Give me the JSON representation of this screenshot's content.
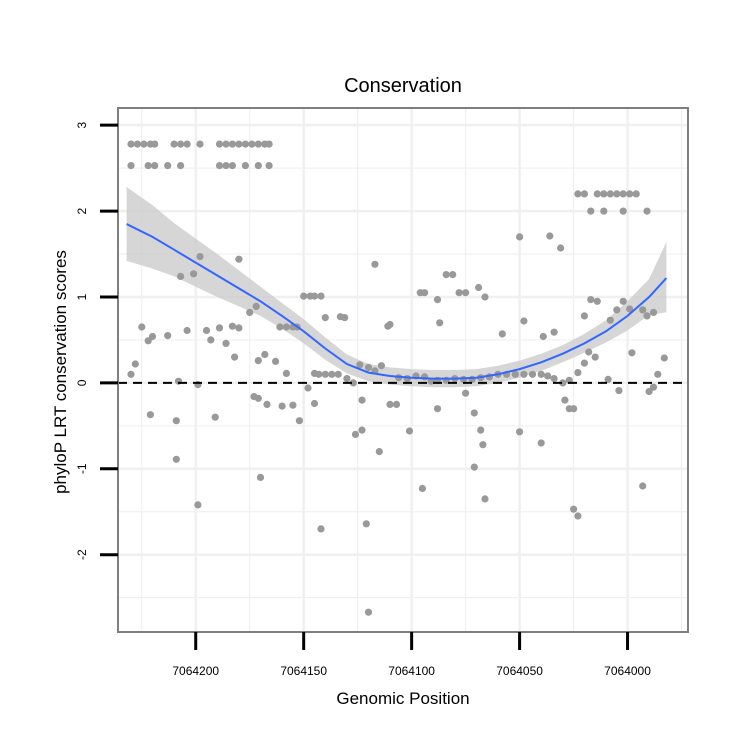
{
  "chart_data": {
    "type": "scatter",
    "title": "Conservation",
    "xlabel": "Genomic Position",
    "ylabel": "phyloP LRT conservation scores",
    "xlim": [
      7064236,
      7063972
    ],
    "ylim": [
      -2.9,
      3.2
    ],
    "x_reversed": true,
    "x_ticks": [
      7064200,
      7064150,
      7064100,
      7064050,
      7064000
    ],
    "x_tick_labels": [
      "7064200",
      "7064150",
      "7064100",
      "7064050",
      "7064000"
    ],
    "y_ticks": [
      -2,
      -1,
      0,
      1,
      2,
      3
    ],
    "y_tick_labels": [
      "-2",
      "-1",
      "0",
      "1",
      "2",
      "3"
    ],
    "reference_line": {
      "y": 0,
      "style": "dashed"
    },
    "grid": true,
    "colors": {
      "points": "#999999",
      "smooth": "#3366ff",
      "ribbon": "#cccccc",
      "panel_border": "#7f7f7f",
      "grid": "#f0f0f0"
    },
    "points": [
      [
        7064230,
        2.78
      ],
      [
        7064227,
        2.78
      ],
      [
        7064224,
        2.78
      ],
      [
        7064221,
        2.78
      ],
      [
        7064219,
        2.78
      ],
      [
        7064210,
        2.78
      ],
      [
        7064207,
        2.78
      ],
      [
        7064204,
        2.78
      ],
      [
        7064198,
        2.78
      ],
      [
        7064189,
        2.78
      ],
      [
        7064186,
        2.78
      ],
      [
        7064183,
        2.78
      ],
      [
        7064180,
        2.78
      ],
      [
        7064177,
        2.78
      ],
      [
        7064174,
        2.78
      ],
      [
        7064171,
        2.78
      ],
      [
        7064168,
        2.78
      ],
      [
        7064166,
        2.78
      ],
      [
        7064230,
        2.53
      ],
      [
        7064222,
        2.53
      ],
      [
        7064219,
        2.53
      ],
      [
        7064213,
        2.53
      ],
      [
        7064207,
        2.53
      ],
      [
        7064189,
        2.53
      ],
      [
        7064186,
        2.53
      ],
      [
        7064183,
        2.53
      ],
      [
        7064177,
        2.53
      ],
      [
        7064171,
        2.53
      ],
      [
        7064166,
        2.53
      ],
      [
        7064023,
        2.2
      ],
      [
        7064020,
        2.2
      ],
      [
        7064014,
        2.2
      ],
      [
        7064011,
        2.2
      ],
      [
        7064008,
        2.2
      ],
      [
        7064005,
        2.2
      ],
      [
        7064002,
        2.2
      ],
      [
        7063999,
        2.2
      ],
      [
        7063996,
        2.2
      ],
      [
        7064017,
        2.0
      ],
      [
        7064011,
        2.0
      ],
      [
        7064002,
        2.0
      ],
      [
        7063991,
        2.0
      ],
      [
        7064198,
        1.47
      ],
      [
        7064180,
        1.44
      ],
      [
        7064201,
        1.27
      ],
      [
        7064207,
        1.24
      ],
      [
        7064081,
        1.26
      ],
      [
        7064084,
        1.26
      ],
      [
        7064117,
        1.38
      ],
      [
        7064050,
        1.7
      ],
      [
        7064036,
        1.71
      ],
      [
        7064031,
        1.57
      ],
      [
        7064150,
        1.01
      ],
      [
        7064147,
        1.01
      ],
      [
        7064145,
        1.01
      ],
      [
        7064142,
        1.01
      ],
      [
        7064096,
        1.05
      ],
      [
        7064094,
        1.05
      ],
      [
        7064078,
        1.05
      ],
      [
        7064075,
        1.05
      ],
      [
        7064066,
        1.0
      ],
      [
        7064088,
        0.97
      ],
      [
        7064069,
        1.11
      ],
      [
        7064017,
        0.97
      ],
      [
        7064014,
        0.95
      ],
      [
        7064005,
        0.85
      ],
      [
        7064002,
        0.95
      ],
      [
        7063999,
        0.86
      ],
      [
        7063993,
        0.85
      ],
      [
        7063988,
        0.82
      ],
      [
        7063991,
        0.78
      ],
      [
        7064008,
        0.73
      ],
      [
        7064020,
        0.78
      ],
      [
        7064225,
        0.65
      ],
      [
        7064204,
        0.61
      ],
      [
        7064195,
        0.61
      ],
      [
        7064189,
        0.64
      ],
      [
        7064183,
        0.66
      ],
      [
        7064180,
        0.64
      ],
      [
        7064172,
        0.89
      ],
      [
        7064175,
        0.82
      ],
      [
        7064140,
        0.76
      ],
      [
        7064131,
        0.76
      ],
      [
        7064133,
        0.77
      ],
      [
        7064155,
        0.65
      ],
      [
        7064153,
        0.65
      ],
      [
        7064161,
        0.65
      ],
      [
        7064158,
        0.65
      ],
      [
        7064111,
        0.66
      ],
      [
        7064110,
        0.68
      ],
      [
        7064087,
        0.7
      ],
      [
        7064058,
        0.57
      ],
      [
        7064039,
        0.54
      ],
      [
        7064034,
        0.59
      ],
      [
        7064048,
        0.72
      ],
      [
        7064228,
        0.22
      ],
      [
        7064230,
        0.1
      ],
      [
        7064222,
        0.49
      ],
      [
        7064220,
        0.54
      ],
      [
        7064208,
        0.02
      ],
      [
        7064213,
        0.55
      ],
      [
        7064193,
        0.5
      ],
      [
        7064186,
        0.46
      ],
      [
        7064182,
        0.3
      ],
      [
        7064171,
        0.26
      ],
      [
        7064168,
        0.33
      ],
      [
        7064163,
        0.25
      ],
      [
        7064158,
        0.11
      ],
      [
        7064148,
        -0.06
      ],
      [
        7064145,
        0.11
      ],
      [
        7064143,
        0.1
      ],
      [
        7064140,
        0.1
      ],
      [
        7064137,
        0.1
      ],
      [
        7064134,
        0.1
      ],
      [
        7064130,
        0.05
      ],
      [
        7064127,
        0.0
      ],
      [
        7064124,
        0.21
      ],
      [
        7064120,
        0.18
      ],
      [
        7064117,
        0.14
      ],
      [
        7064114,
        0.2
      ],
      [
        7064106,
        0.06
      ],
      [
        7064102,
        0.05
      ],
      [
        7064098,
        0.08
      ],
      [
        7064094,
        0.07
      ],
      [
        7064091,
        0.02
      ],
      [
        7064088,
        0.03
      ],
      [
        7064084,
        0.03
      ],
      [
        7064080,
        0.05
      ],
      [
        7064076,
        0.04
      ],
      [
        7064072,
        0.04
      ],
      [
        7064068,
        0.06
      ],
      [
        7064064,
        0.07
      ],
      [
        7064060,
        0.1
      ],
      [
        7064056,
        0.1
      ],
      [
        7064052,
        0.1
      ],
      [
        7064048,
        0.1
      ],
      [
        7064044,
        0.1
      ],
      [
        7064040,
        0.1
      ],
      [
        7064037,
        0.08
      ],
      [
        7064034,
        0.05
      ],
      [
        7064030,
        0.0
      ],
      [
        7064027,
        0.03
      ],
      [
        7064023,
        0.12
      ],
      [
        7064020,
        0.23
      ],
      [
        7064018,
        0.36
      ],
      [
        7064015,
        0.3
      ],
      [
        7064009,
        0.04
      ],
      [
        7063998,
        0.35
      ],
      [
        7063988,
        -0.05
      ],
      [
        7063986,
        0.1
      ],
      [
        7063983,
        0.29
      ],
      [
        7064221,
        -0.37
      ],
      [
        7064209,
        -0.44
      ],
      [
        7064199,
        -0.02
      ],
      [
        7064191,
        -0.4
      ],
      [
        7064173,
        -0.16
      ],
      [
        7064171,
        -0.18
      ],
      [
        7064167,
        -0.25
      ],
      [
        7064160,
        -0.27
      ],
      [
        7064155,
        -0.26
      ],
      [
        7064152,
        -0.44
      ],
      [
        7064145,
        -0.24
      ],
      [
        7064123,
        -0.2
      ],
      [
        7064110,
        -0.25
      ],
      [
        7064107,
        -0.25
      ],
      [
        7064101,
        -0.56
      ],
      [
        7064088,
        -0.3
      ],
      [
        7064075,
        -0.12
      ],
      [
        7064071,
        -0.35
      ],
      [
        7064068,
        -0.55
      ],
      [
        7064067,
        -0.72
      ],
      [
        7064050,
        -0.57
      ],
      [
        7064029,
        -0.2
      ],
      [
        7064027,
        -0.3
      ],
      [
        7064025,
        -0.3
      ],
      [
        7064004,
        -0.09
      ],
      [
        7063990,
        -0.1
      ],
      [
        7064209,
        -0.89
      ],
      [
        7064199,
        -1.42
      ],
      [
        7064170,
        -1.1
      ],
      [
        7064142,
        -1.7
      ],
      [
        7064126,
        -0.6
      ],
      [
        7064123,
        -0.55
      ],
      [
        7064115,
        -0.8
      ],
      [
        7064095,
        -1.23
      ],
      [
        7064071,
        -0.98
      ],
      [
        7064066,
        -1.35
      ],
      [
        7064040,
        -0.7
      ],
      [
        7064025,
        -1.47
      ],
      [
        7064023,
        -1.55
      ],
      [
        7063993,
        -1.2
      ],
      [
        7064121,
        -1.64
      ],
      [
        7064120,
        -2.67
      ]
    ],
    "smooth": {
      "x": [
        7064232,
        7064220,
        7064210,
        7064200,
        7064190,
        7064180,
        7064170,
        7064160,
        7064150,
        7064140,
        7064130,
        7064120,
        7064110,
        7064100,
        7064090,
        7064080,
        7064070,
        7064060,
        7064050,
        7064040,
        7064030,
        7064020,
        7064010,
        7064000,
        7063990,
        7063982
      ],
      "y": [
        1.85,
        1.7,
        1.55,
        1.4,
        1.25,
        1.1,
        0.95,
        0.78,
        0.6,
        0.4,
        0.22,
        0.12,
        0.08,
        0.06,
        0.05,
        0.05,
        0.06,
        0.1,
        0.16,
        0.24,
        0.34,
        0.46,
        0.6,
        0.78,
        1.0,
        1.22
      ],
      "lower": [
        1.42,
        1.33,
        1.24,
        1.12,
        1.0,
        0.89,
        0.78,
        0.63,
        0.46,
        0.27,
        0.11,
        0.02,
        -0.02,
        -0.04,
        -0.05,
        -0.05,
        -0.04,
        0.0,
        0.06,
        0.14,
        0.24,
        0.35,
        0.47,
        0.61,
        0.79,
        0.82
      ],
      "upper": [
        2.28,
        2.07,
        1.86,
        1.68,
        1.5,
        1.31,
        1.12,
        0.93,
        0.74,
        0.53,
        0.33,
        0.22,
        0.18,
        0.16,
        0.15,
        0.15,
        0.16,
        0.2,
        0.26,
        0.34,
        0.44,
        0.57,
        0.73,
        0.95,
        1.21,
        1.64
      ]
    }
  }
}
